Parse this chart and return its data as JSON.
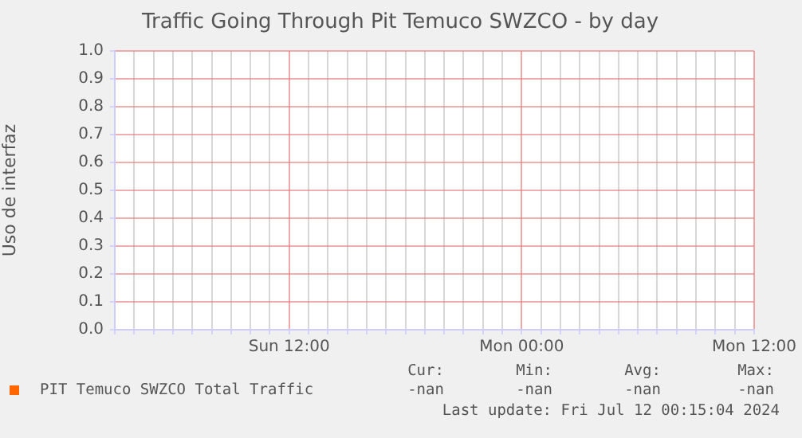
{
  "chart_data": {
    "type": "line",
    "title": "Traffic Going Through Pit Temuco SWZCO - by day",
    "ylabel": "Uso de interfaz",
    "categories": [
      null,
      null,
      null,
      null,
      null,
      null,
      null,
      null,
      null,
      "Sun 12:00",
      null,
      null,
      null,
      null,
      null,
      null,
      null,
      null,
      null,
      null,
      null,
      "Mon 00:00",
      null,
      null,
      null,
      null,
      null,
      null,
      null,
      null,
      null,
      null,
      null,
      "Mon 12:00"
    ],
    "series": [
      {
        "name": "PIT Temuco SWZCO Total Traffic",
        "color": "#ff6600",
        "values": [
          null,
          null,
          null,
          null,
          null,
          null,
          null,
          null,
          null,
          null,
          null,
          null,
          null,
          null,
          null,
          null,
          null,
          null,
          null,
          null,
          null,
          null,
          null,
          null,
          null,
          null,
          null,
          null,
          null,
          null,
          null,
          null,
          null,
          null
        ]
      }
    ],
    "ylim": [
      0,
      1
    ],
    "yticks": [
      {
        "value": 0,
        "label": "0.0"
      },
      {
        "value": 0.1,
        "label": "0.1"
      },
      {
        "value": 0.2,
        "label": "0.2"
      },
      {
        "value": 0.3,
        "label": "0.3"
      },
      {
        "value": 0.4,
        "label": "0.4"
      },
      {
        "value": 0.5,
        "label": "0.5"
      },
      {
        "value": 0.6,
        "label": "0.6"
      },
      {
        "value": 0.7,
        "label": "0.7"
      },
      {
        "value": 0.8,
        "label": "0.8"
      },
      {
        "value": 0.9,
        "label": "0.9"
      },
      {
        "value": 1,
        "label": "1.0"
      }
    ],
    "grid": true,
    "legend": "bottom left",
    "annotations": [
      "Cur:",
      "-nan",
      "Min:",
      "-nan",
      "Avg:",
      "-nan",
      "Max:",
      "-nan",
      "Last update: Fri Jul 12 00:15:04 2024"
    ]
  }
}
